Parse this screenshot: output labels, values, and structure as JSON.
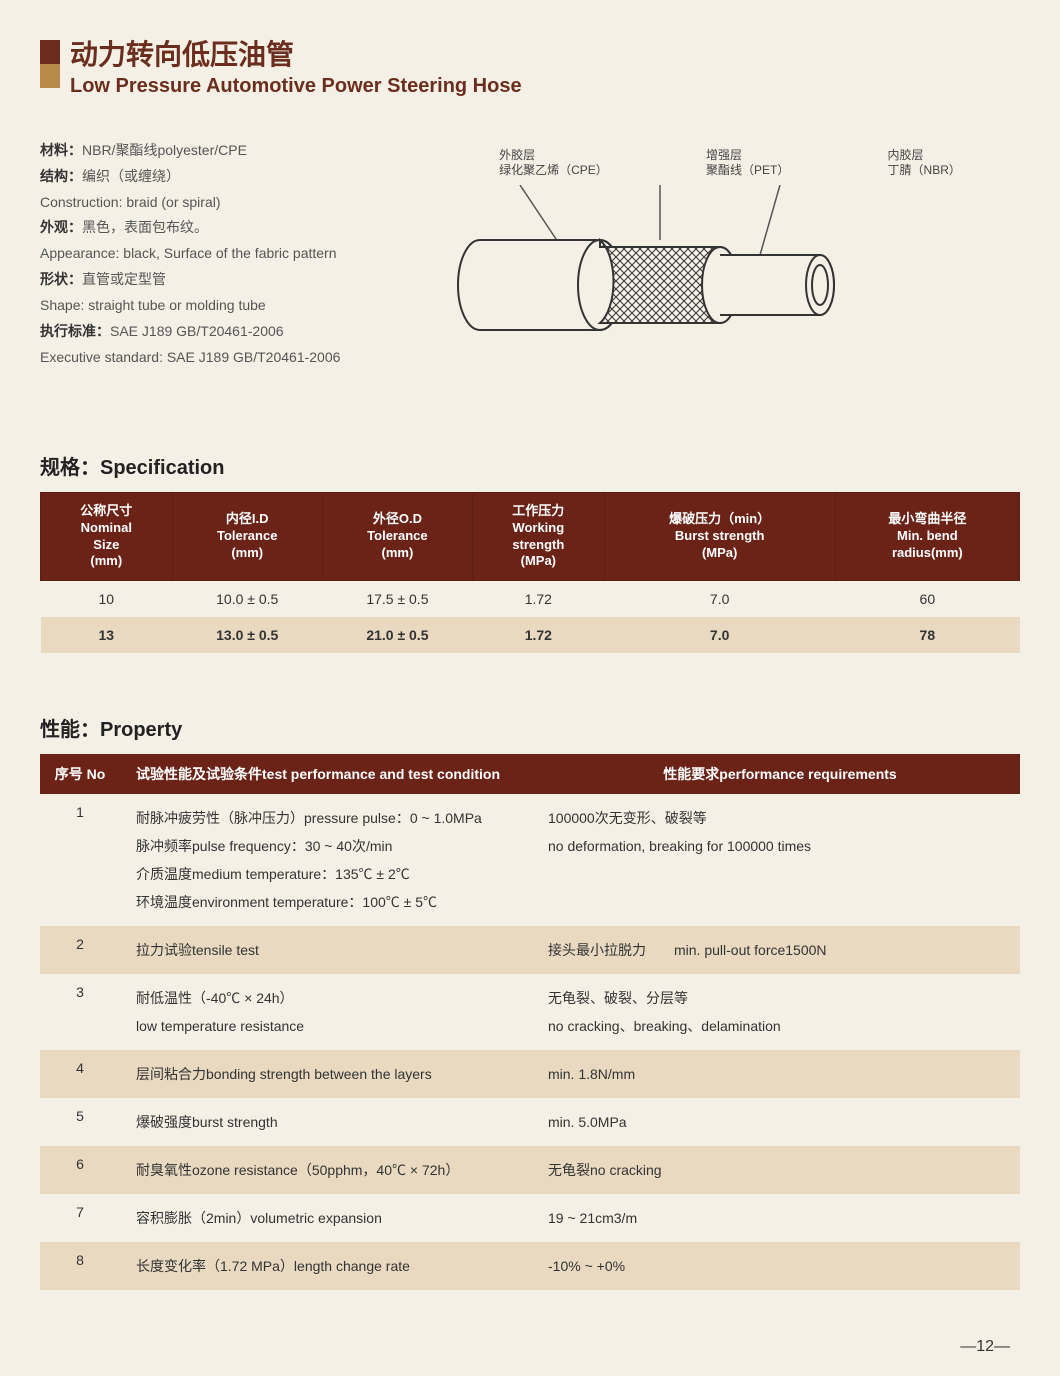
{
  "title": {
    "cn": "动力转向低压油管",
    "en": "Low Pressure Automotive Power Steering Hose"
  },
  "intro": [
    {
      "label": "材料：",
      "text": "NBR/聚酯线polyester/CPE"
    },
    {
      "label": "结构：",
      "text": "编织（或缠绕）"
    },
    {
      "label": "",
      "text": "Construction: braid (or spiral)"
    },
    {
      "label": "外观：",
      "text": "黑色，表面包布纹。"
    },
    {
      "label": "",
      "text": "Appearance: black, Surface of the fabric pattern"
    },
    {
      "label": "形状：",
      "text": "直管或定型管"
    },
    {
      "label": "",
      "text": "Shape: straight tube or molding tube"
    },
    {
      "label": "执行标准：",
      "text": "SAE J189  GB/T20461-2006"
    },
    {
      "label": "",
      "text": "Executive standard: SAE J189  GB/T20461-2006"
    }
  ],
  "diagram": {
    "label1a": "外胶层",
    "label1b": "绿化聚乙烯（CPE）",
    "label2a": "增强层",
    "label2b": "聚酯线（PET）",
    "label3a": "内胶层",
    "label3b": "丁腈（NBR）"
  },
  "spec": {
    "title": "规格：Specification",
    "headers": [
      "公称尺寸\nNominal\nSize\n(mm)",
      "内径I.D\nTolerance\n(mm)",
      "外径O.D\nTolerance\n(mm)",
      "工作压力\nWorking\nstrength\n(MPa)",
      "爆破压力（min）\nBurst strength\n(MPa)",
      "最小弯曲半径\nMin. bend\nradius(mm)"
    ],
    "rows": [
      [
        "10",
        "10.0 ± 0.5",
        "17.5 ± 0.5",
        "1.72",
        "7.0",
        "60"
      ],
      [
        "13",
        "13.0 ± 0.5",
        "21.0 ± 0.5",
        "1.72",
        "7.0",
        "78"
      ]
    ]
  },
  "prop": {
    "title": "性能：Property",
    "headers": [
      "序号 No",
      "试验性能及试验条件test performance and test condition",
      "性能要求performance requirements"
    ],
    "rows": [
      {
        "no": "1",
        "cond": "耐脉冲疲劳性（脉冲压力）pressure pulse：0 ~ 1.0MPa\n脉冲频率pulse frequency：30 ~ 40次/min\n介质温度medium temperature：135℃ ± 2℃\n环境温度environment temperature：100℃ ± 5℃",
        "req": "100000次无变形、破裂等\nno deformation, breaking for 100000 times",
        "alt": false
      },
      {
        "no": "2",
        "cond": "拉力试验tensile test",
        "req": "接头最小拉脱力　　min. pull-out force1500N",
        "alt": true
      },
      {
        "no": "3",
        "cond": "耐低温性（-40℃ × 24h）\nlow temperature resistance",
        "req": "无龟裂、破裂、分层等\nno cracking、breaking、delamination",
        "alt": false
      },
      {
        "no": "4",
        "cond": "层间粘合力bonding strength between the layers",
        "req": "min. 1.8N/mm",
        "alt": true
      },
      {
        "no": "5",
        "cond": "爆破强度burst strength",
        "req": "min. 5.0MPa",
        "alt": false
      },
      {
        "no": "6",
        "cond": "耐臭氧性ozone resistance（50pphm，40℃ × 72h）",
        "req": "无龟裂no cracking",
        "alt": true
      },
      {
        "no": "7",
        "cond": "容积膨胀（2min）volumetric expansion",
        "req": "19 ~ 21cm3/m",
        "alt": false
      },
      {
        "no": "8",
        "cond": "长度变化率（1.72 MPa）length change rate",
        "req": "-10% ~ +0%",
        "alt": true
      }
    ]
  },
  "pageNumber": "—12—",
  "colors": {
    "header_bg": "#6b2318",
    "alt_row_bg": "#e8d9c0",
    "page_bg": "#f5f0e6",
    "accent": "#6b2e1e"
  }
}
